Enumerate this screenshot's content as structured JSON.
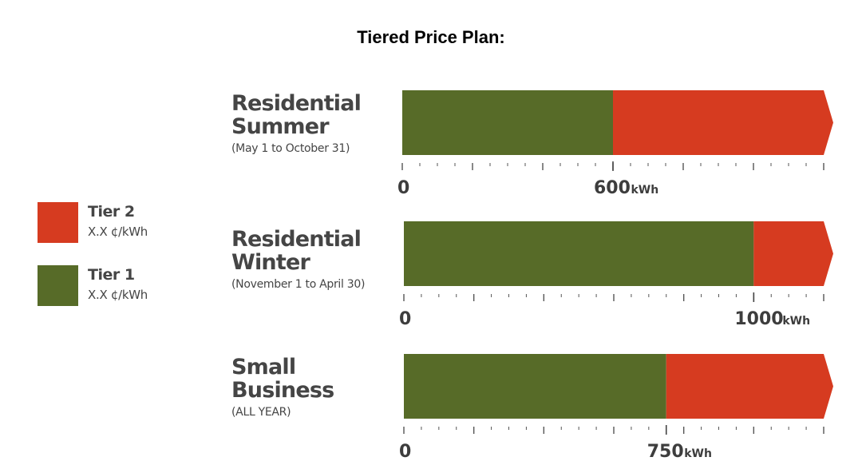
{
  "title": "Tiered Price Plan:",
  "legend": [
    {
      "name": "Tier 2",
      "rate": "X.X ¢/kWh",
      "color": "#d63b20"
    },
    {
      "name": "Tier 1",
      "rate": "X.X ¢/kWh",
      "color": "#576b28"
    }
  ],
  "chart_data": {
    "type": "bar",
    "orientation": "horizontal-stacked",
    "title": "Tiered Price Plan:",
    "unit": "kWh",
    "series": [
      {
        "name": "Tier 1",
        "color": "#576b28"
      },
      {
        "name": "Tier 2",
        "color": "#d63b20"
      }
    ],
    "rows": [
      {
        "name": "Residential\nSummer",
        "period": "(May 1 to October 31)",
        "threshold": 600,
        "max": 1200,
        "start_label": "0",
        "threshold_label": "600",
        "unit_label": "kWh"
      },
      {
        "name": "Residential\nWinter",
        "period": "(November 1 to April 30)",
        "threshold": 1000,
        "max": 1200,
        "start_label": "0",
        "threshold_label": "1000",
        "unit_label": "kWh"
      },
      {
        "name": "Small\nBusiness",
        "period": "(ALL YEAR)",
        "threshold": 750,
        "max": 1200,
        "start_label": "0",
        "threshold_label": "750",
        "unit_label": "kWh"
      }
    ]
  }
}
